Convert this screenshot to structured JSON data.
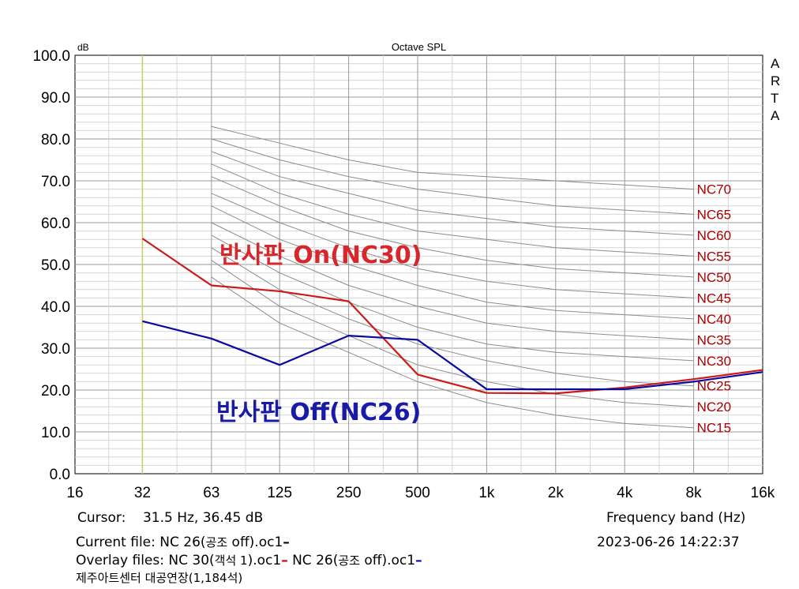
{
  "chart_data": {
    "type": "line",
    "title": "Octave SPL",
    "y_unit": "dB",
    "side_label": "ARTA",
    "xlabel": "Frequency band (Hz)",
    "x_ticks": [
      "16",
      "32",
      "63",
      "125",
      "250",
      "500",
      "1k",
      "2k",
      "4k",
      "8k",
      "16k"
    ],
    "y_ticks": [
      "0.0",
      "10.0",
      "20.0",
      "30.0",
      "40.0",
      "50.0",
      "60.0",
      "70.0",
      "80.0",
      "90.0",
      "100.0"
    ],
    "ylim": [
      0,
      100
    ],
    "x": [
      16,
      31.5,
      63,
      125,
      250,
      500,
      1000,
      2000,
      4000,
      8000,
      16000
    ],
    "grid": true,
    "cursor": {
      "x": 31.5,
      "color": "#cccc66"
    },
    "series": [
      {
        "name": "반사판 On(NC30)",
        "color": "#cc1a1a",
        "points": [
          [
            31.5,
            56.2
          ],
          [
            63,
            45
          ],
          [
            125,
            43.6
          ],
          [
            250,
            41.2
          ],
          [
            500,
            23.7
          ],
          [
            1000,
            19.3
          ],
          [
            2000,
            19.2
          ],
          [
            4000,
            20.6
          ],
          [
            8000,
            22.6
          ],
          [
            16000,
            24.8
          ]
        ]
      },
      {
        "name": "반사판 Off(NC26)",
        "color": "#0a0aa0",
        "points": [
          [
            31.5,
            36.45
          ],
          [
            63,
            32.3
          ],
          [
            125,
            26
          ],
          [
            250,
            33
          ],
          [
            500,
            32
          ],
          [
            1000,
            20.2
          ],
          [
            2000,
            20.2
          ],
          [
            4000,
            20.2
          ],
          [
            8000,
            22
          ],
          [
            16000,
            24.3
          ]
        ]
      }
    ],
    "nc_curves": [
      {
        "label": "NC15",
        "values": [
          47,
          36,
          29,
          22,
          17,
          14,
          12,
          11
        ]
      },
      {
        "label": "NC20",
        "values": [
          51,
          40,
          33,
          26,
          22,
          19,
          17,
          16
        ]
      },
      {
        "label": "NC25",
        "values": [
          54,
          44,
          37,
          31,
          27,
          24,
          22,
          21
        ]
      },
      {
        "label": "NC30",
        "values": [
          57,
          48,
          41,
          35,
          31,
          29,
          28,
          27
        ]
      },
      {
        "label": "NC35",
        "values": [
          60,
          52,
          45,
          40,
          36,
          34,
          33,
          32
        ]
      },
      {
        "label": "NC40",
        "values": [
          64,
          56,
          50,
          45,
          41,
          39,
          38,
          37
        ]
      },
      {
        "label": "NC45",
        "values": [
          67,
          60,
          54,
          49,
          46,
          44,
          43,
          42
        ]
      },
      {
        "label": "NC50",
        "values": [
          71,
          64,
          58,
          54,
          51,
          49,
          48,
          47
        ]
      },
      {
        "label": "NC55",
        "values": [
          74,
          67,
          62,
          58,
          56,
          54,
          53,
          52
        ]
      },
      {
        "label": "NC60",
        "values": [
          77,
          71,
          67,
          63,
          61,
          59,
          58,
          57
        ]
      },
      {
        "label": "NC65",
        "values": [
          80,
          75,
          71,
          68,
          66,
          64,
          63,
          62
        ]
      },
      {
        "label": "NC70",
        "values": [
          83,
          79,
          75,
          72,
          71,
          70,
          69,
          68
        ]
      }
    ],
    "nc_x": [
      63,
      125,
      250,
      500,
      1000,
      2000,
      4000,
      8000
    ],
    "nc_label_color": "#aa0000"
  },
  "annotations": {
    "on_label": "반사판 On(NC30)",
    "off_label": "반사판 Off(NC26)"
  },
  "footer": {
    "cursor_label": "Cursor:",
    "cursor_value": "31.5 Hz, 36.45 dB",
    "freq_band_label": "Frequency band (Hz)",
    "current_file_label": "Current file:",
    "current_file_name": "NC 26(",
    "current_file_kr": "공조",
    "current_file_rest": " off).oc1",
    "current_file_mark": "–",
    "datetime": "2023-06-26   14:22:37",
    "overlay_label": "Overlay files:",
    "overlay1_a": "NC 30(",
    "overlay1_kr": "객석 1",
    "overlay1_b": ").oc1",
    "overlay1_mark": "–",
    "overlay2_a": "NC 26(",
    "overlay2_kr": "공조",
    "overlay2_b": " off).oc1",
    "overlay2_mark": "–",
    "venue": "제주아트센터 대공연장(1,184석)"
  }
}
